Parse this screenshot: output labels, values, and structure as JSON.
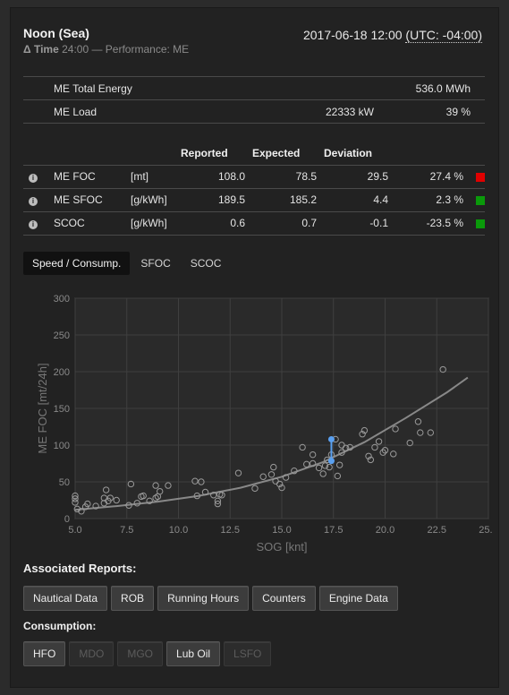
{
  "header": {
    "title": "Noon (Sea)",
    "delta_label": "Δ Time",
    "delta_value": "24:00",
    "perf_label": "— Performance: ME",
    "datetime": "2017-06-18 12:00",
    "timezone": "(UTC: -04:00)"
  },
  "energy": {
    "rows": [
      {
        "label": "ME Total Energy",
        "mid": "",
        "value": "536.0 MWh"
      },
      {
        "label": "ME Load",
        "mid": "22333 kW",
        "value": "39 %"
      }
    ]
  },
  "performance": {
    "headers": {
      "reported": "Reported",
      "expected": "Expected",
      "deviation": "Deviation"
    },
    "rows": [
      {
        "name": "ME FOC",
        "unit": "[mt]",
        "reported": "108.0",
        "expected": "78.5",
        "deviation": "29.5",
        "pct": "27.4 %",
        "status_color": "#e00000"
      },
      {
        "name": "ME SFOC",
        "unit": "[g/kWh]",
        "reported": "189.5",
        "expected": "185.2",
        "deviation": "4.4",
        "pct": "2.3 %",
        "status_color": "#0a9a0a"
      },
      {
        "name": "SCOC",
        "unit": "[g/kWh]",
        "reported": "0.6",
        "expected": "0.7",
        "deviation": "-0.1",
        "pct": "-23.5 %",
        "status_color": "#0a9a0a"
      }
    ]
  },
  "tabs": [
    "Speed / Consump.",
    "SFOC",
    "SCOC"
  ],
  "chart_data": {
    "type": "scatter",
    "xlabel": "SOG [knt]",
    "ylabel": "ME FOC [mt/24h]",
    "xlim": [
      5.0,
      25.0
    ],
    "ylim": [
      0,
      300
    ],
    "x_ticks": [
      "5.0",
      "7.5",
      "10.0",
      "12.5",
      "15.0",
      "17.5",
      "20.0",
      "22.5",
      "25.0"
    ],
    "y_ticks": [
      "0",
      "50",
      "100",
      "150",
      "200",
      "250",
      "300"
    ],
    "grid": true,
    "points": [
      [
        5.0,
        27
      ],
      [
        5.0,
        31
      ],
      [
        5.0,
        22
      ],
      [
        5.1,
        13
      ],
      [
        5.3,
        10
      ],
      [
        5.5,
        16
      ],
      [
        5.6,
        20
      ],
      [
        6.0,
        17
      ],
      [
        6.4,
        21
      ],
      [
        6.4,
        28
      ],
      [
        6.5,
        39
      ],
      [
        6.6,
        24
      ],
      [
        6.7,
        28
      ],
      [
        7.0,
        25
      ],
      [
        7.6,
        18
      ],
      [
        7.7,
        47
      ],
      [
        8.0,
        21
      ],
      [
        8.2,
        30
      ],
      [
        8.3,
        31
      ],
      [
        8.6,
        24
      ],
      [
        8.9,
        45
      ],
      [
        8.9,
        28
      ],
      [
        9.0,
        30
      ],
      [
        9.1,
        37
      ],
      [
        9.5,
        45
      ],
      [
        10.8,
        51
      ],
      [
        10.9,
        31
      ],
      [
        11.1,
        50
      ],
      [
        11.3,
        36
      ],
      [
        11.7,
        32
      ],
      [
        11.9,
        24
      ],
      [
        11.9,
        20
      ],
      [
        12.0,
        33
      ],
      [
        12.1,
        32
      ],
      [
        12.9,
        62
      ],
      [
        13.7,
        41
      ],
      [
        14.1,
        57
      ],
      [
        14.5,
        60
      ],
      [
        14.6,
        70
      ],
      [
        14.7,
        51
      ],
      [
        14.9,
        47
      ],
      [
        15.0,
        42
      ],
      [
        15.2,
        56
      ],
      [
        15.6,
        65
      ],
      [
        16.0,
        97
      ],
      [
        16.2,
        74
      ],
      [
        16.5,
        75
      ],
      [
        16.5,
        87
      ],
      [
        16.8,
        69
      ],
      [
        17.0,
        61
      ],
      [
        17.1,
        72
      ],
      [
        17.2,
        80
      ],
      [
        17.3,
        70
      ],
      [
        17.4,
        87
      ],
      [
        17.6,
        108
      ],
      [
        17.7,
        58
      ],
      [
        17.8,
        73
      ],
      [
        17.9,
        90
      ],
      [
        17.9,
        100
      ],
      [
        18.1,
        96
      ],
      [
        18.3,
        97
      ],
      [
        18.9,
        115
      ],
      [
        19.0,
        120
      ],
      [
        19.2,
        85
      ],
      [
        19.3,
        80
      ],
      [
        19.5,
        97
      ],
      [
        19.7,
        105
      ],
      [
        19.9,
        90
      ],
      [
        20.0,
        93
      ],
      [
        20.4,
        88
      ],
      [
        20.5,
        122
      ],
      [
        21.2,
        103
      ],
      [
        21.6,
        132
      ],
      [
        21.7,
        117
      ],
      [
        22.2,
        117
      ],
      [
        22.8,
        203
      ]
    ],
    "fit_curve": [
      [
        5,
        12
      ],
      [
        7,
        17
      ],
      [
        9,
        23
      ],
      [
        11,
        31
      ],
      [
        13,
        42
      ],
      [
        15,
        57
      ],
      [
        17,
        77
      ],
      [
        19,
        104
      ],
      [
        21,
        137
      ],
      [
        23,
        172
      ],
      [
        24,
        192
      ]
    ],
    "highlight": {
      "x": 17.4,
      "reported": 108.0,
      "expected": 78.5,
      "color": "#5aa0f0"
    }
  },
  "associated": {
    "title": "Associated Reports:",
    "buttons": [
      "Nautical Data",
      "ROB",
      "Running Hours",
      "Counters",
      "Engine Data"
    ]
  },
  "consumption": {
    "title": "Consumption:",
    "buttons": [
      {
        "label": "HFO",
        "enabled": true
      },
      {
        "label": "MDO",
        "enabled": false
      },
      {
        "label": "MGO",
        "enabled": false
      },
      {
        "label": "Lub Oil",
        "enabled": true
      },
      {
        "label": "LSFO",
        "enabled": false
      }
    ]
  }
}
